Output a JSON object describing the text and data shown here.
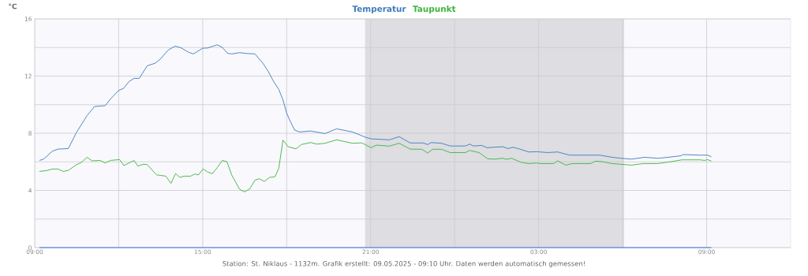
{
  "chart_data": {
    "type": "line",
    "ylabel": "°C",
    "legend": "top",
    "grid": true,
    "xlim": [
      "2025-05-08T09:00",
      "2025-05-09T12:00"
    ],
    "ylim": [
      0,
      16
    ],
    "xticks": [
      {
        "value": "2025-05-08T09:00",
        "label": "09:00"
      },
      {
        "value": "2025-05-08T12:00",
        "label": null
      },
      {
        "value": "2025-05-08T15:00",
        "label": "15:00"
      },
      {
        "value": "2025-05-08T18:00",
        "label": null
      },
      {
        "value": "2025-05-08T21:00",
        "label": "21:00"
      },
      {
        "value": "2025-05-09T00:00",
        "label": null
      },
      {
        "value": "2025-05-09T03:00",
        "label": "03:00"
      },
      {
        "value": "2025-05-09T06:00",
        "label": null
      },
      {
        "value": "2025-05-09T09:00",
        "label": "09:00"
      }
    ],
    "yticks": [
      0,
      {
        "value": 2,
        "label": null
      },
      4,
      {
        "value": 6,
        "label": null
      },
      8,
      {
        "value": 10,
        "label": null
      },
      12,
      {
        "value": 14,
        "label": null
      },
      16
    ],
    "bands": [
      {
        "axis": "x",
        "from": "2025-05-08T20:48",
        "to": "2025-05-09T06:03",
        "color": "#dddde2"
      }
    ],
    "series": [
      {
        "name": "Temperatur",
        "color": "#3d7dbb",
        "x": [
          "2025-05-08T09:10",
          "2025-05-08T09:19",
          "2025-05-08T09:38",
          "2025-05-08T09:50",
          "2025-05-08T10:12",
          "2025-05-08T10:29",
          "2025-05-08T10:52",
          "2025-05-08T11:08",
          "2025-05-08T11:31",
          "2025-05-08T11:43",
          "2025-05-08T11:59",
          "2025-05-08T12:11",
          "2025-05-08T12:22",
          "2025-05-08T12:33",
          "2025-05-08T12:44",
          "2025-05-08T13:01",
          "2025-05-08T13:18",
          "2025-05-08T13:29",
          "2025-05-08T13:46",
          "2025-05-08T14:01",
          "2025-05-08T14:14",
          "2025-05-08T14:29",
          "2025-05-08T14:40",
          "2025-05-08T15:00",
          "2025-05-08T15:11",
          "2025-05-08T15:31",
          "2025-05-08T15:42",
          "2025-05-08T15:53",
          "2025-05-08T16:02",
          "2025-05-08T16:19",
          "2025-05-08T16:35",
          "2025-05-08T16:52",
          "2025-05-08T17:09",
          "2025-05-08T17:20",
          "2025-05-08T17:32",
          "2025-05-08T17:43",
          "2025-05-08T17:52",
          "2025-05-08T18:00",
          "2025-05-08T18:06",
          "2025-05-08T18:17",
          "2025-05-08T18:28",
          "2025-05-08T18:51",
          "2025-05-08T19:22",
          "2025-05-08T19:47",
          "2025-05-08T20:21",
          "2025-05-08T20:49",
          "2025-05-08T21:01",
          "2025-05-08T21:40",
          "2025-05-08T22:01",
          "2025-05-08T22:25",
          "2025-05-08T22:53",
          "2025-05-08T23:02",
          "2025-05-08T23:10",
          "2025-05-08T23:32",
          "2025-05-08T23:50",
          "2025-05-09T00:23",
          "2025-05-09T00:32",
          "2025-05-09T00:40",
          "2025-05-09T00:58",
          "2025-05-09T01:09",
          "2025-05-09T01:43",
          "2025-05-09T01:54",
          "2025-05-09T02:05",
          "2025-05-09T02:16",
          "2025-05-09T02:39",
          "2025-05-09T02:56",
          "2025-05-09T03:18",
          "2025-05-09T03:41",
          "2025-05-09T04:06",
          "2025-05-09T05:11",
          "2025-05-09T05:37",
          "2025-05-09T05:56",
          "2025-05-09T06:19",
          "2025-05-09T06:47",
          "2025-05-09T07:15",
          "2025-05-09T07:38",
          "2025-05-09T08:06",
          "2025-05-09T08:08",
          "2025-05-09T08:46",
          "2025-05-09T09:02",
          "2025-05-09T09:10"
        ],
        "values": [
          6.1,
          6.19,
          6.75,
          6.89,
          6.93,
          8.03,
          9.23,
          9.87,
          9.93,
          10.42,
          10.97,
          11.16,
          11.62,
          11.84,
          11.84,
          12.72,
          12.9,
          13.18,
          13.82,
          14.1,
          13.97,
          13.68,
          13.55,
          13.95,
          13.97,
          14.19,
          14.01,
          13.6,
          13.55,
          13.64,
          13.58,
          13.55,
          12.9,
          12.35,
          11.62,
          11.07,
          10.33,
          9.41,
          8.95,
          8.22,
          8.09,
          8.16,
          7.98,
          8.31,
          8.09,
          7.72,
          7.61,
          7.54,
          7.76,
          7.32,
          7.32,
          7.21,
          7.35,
          7.3,
          7.11,
          7.11,
          7.24,
          7.11,
          7.15,
          6.99,
          7.06,
          6.93,
          7.02,
          6.93,
          6.69,
          6.71,
          6.65,
          6.69,
          6.47,
          6.47,
          6.32,
          6.25,
          6.19,
          6.32,
          6.25,
          6.32,
          6.43,
          6.51,
          6.47,
          6.47,
          6.36
        ]
      },
      {
        "name": "Taupunkt",
        "color": "#3cb43c",
        "x": [
          "2025-05-08T09:10",
          "2025-05-08T09:27",
          "2025-05-08T09:38",
          "2025-05-08T09:50",
          "2025-05-08T10:01",
          "2025-05-08T10:12",
          "2025-05-08T10:29",
          "2025-05-08T10:40",
          "2025-05-08T10:52",
          "2025-05-08T11:03",
          "2025-05-08T11:20",
          "2025-05-08T11:31",
          "2025-05-08T11:43",
          "2025-05-08T12:02",
          "2025-05-08T12:11",
          "2025-05-08T12:33",
          "2025-05-08T12:41",
          "2025-05-08T12:52",
          "2025-05-08T13:01",
          "2025-05-08T13:21",
          "2025-05-08T13:41",
          "2025-05-08T13:52",
          "2025-05-08T14:02",
          "2025-05-08T14:11",
          "2025-05-08T14:20",
          "2025-05-08T14:34",
          "2025-05-08T14:43",
          "2025-05-08T14:51",
          "2025-05-08T15:01",
          "2025-05-08T15:11",
          "2025-05-08T15:21",
          "2025-05-08T15:31",
          "2025-05-08T15:42",
          "2025-05-08T15:52",
          "2025-05-08T16:02",
          "2025-05-08T16:19",
          "2025-05-08T16:30",
          "2025-05-08T16:41",
          "2025-05-08T16:52",
          "2025-05-08T17:01",
          "2025-05-08T17:12",
          "2025-05-08T17:23",
          "2025-05-08T17:35",
          "2025-05-08T17:43",
          "2025-05-08T17:52",
          "2025-05-08T18:03",
          "2025-05-08T18:20",
          "2025-05-08T18:31",
          "2025-05-08T18:51",
          "2025-05-08T19:05",
          "2025-05-08T19:22",
          "2025-05-08T19:47",
          "2025-05-08T20:21",
          "2025-05-08T20:41",
          "2025-05-08T21:01",
          "2025-05-08T21:12",
          "2025-05-08T21:40",
          "2025-05-08T22:01",
          "2025-05-08T22:25",
          "2025-05-08T22:50",
          "2025-05-08T23:02",
          "2025-05-08T23:13",
          "2025-05-08T23:32",
          "2025-05-08T23:50",
          "2025-05-09T00:23",
          "2025-05-09T00:32",
          "2025-05-09T00:52",
          "2025-05-09T01:11",
          "2025-05-09T01:26",
          "2025-05-09T01:43",
          "2025-05-09T01:51",
          "2025-05-09T02:02",
          "2025-05-09T02:22",
          "2025-05-09T02:39",
          "2025-05-09T02:56",
          "2025-05-09T03:04",
          "2025-05-09T03:32",
          "2025-05-09T03:41",
          "2025-05-09T03:58",
          "2025-05-09T04:12",
          "2025-05-09T04:51",
          "2025-05-09T05:02",
          "2025-05-09T05:17",
          "2025-05-09T05:37",
          "2025-05-09T05:56",
          "2025-05-09T06:19",
          "2025-05-09T06:44",
          "2025-05-09T07:15",
          "2025-05-09T07:43",
          "2025-05-09T08:07",
          "2025-05-09T08:46",
          "2025-05-09T08:56",
          "2025-05-09T09:02",
          "2025-05-09T09:10"
        ],
        "values": [
          5.33,
          5.4,
          5.5,
          5.5,
          5.33,
          5.4,
          5.79,
          5.96,
          6.32,
          6.07,
          6.1,
          5.92,
          6.1,
          6.16,
          5.74,
          6.1,
          5.7,
          5.83,
          5.81,
          5.09,
          5.0,
          4.5,
          5.18,
          4.91,
          5.0,
          5.0,
          5.15,
          5.09,
          5.51,
          5.28,
          5.18,
          5.59,
          6.1,
          6.01,
          5.09,
          4.08,
          3.9,
          4.12,
          4.72,
          4.82,
          4.63,
          4.91,
          4.96,
          5.55,
          7.52,
          7.06,
          6.91,
          7.21,
          7.35,
          7.24,
          7.3,
          7.54,
          7.3,
          7.33,
          6.99,
          7.17,
          7.1,
          7.3,
          6.89,
          6.88,
          6.62,
          6.88,
          6.88,
          6.65,
          6.65,
          6.8,
          6.65,
          6.21,
          6.19,
          6.25,
          6.18,
          6.25,
          5.97,
          5.88,
          5.92,
          5.88,
          5.88,
          6.07,
          5.77,
          5.88,
          5.88,
          6.05,
          6.01,
          5.88,
          5.83,
          5.77,
          5.88,
          5.88,
          6.01,
          6.14,
          6.14,
          6.1,
          6.16,
          6.05
        ]
      },
      {
        "color": "#3366dd",
        "x": [
          "2025-05-08T09:10",
          "2025-05-09T09:10"
        ],
        "values": [
          0,
          0
        ]
      }
    ],
    "annotations": [
      "Station: St. Niklaus - 1132m. Grafik erstellt: 09.05.2025 - 09:10 Uhr. Daten werden automatisch gemessen!"
    ]
  }
}
